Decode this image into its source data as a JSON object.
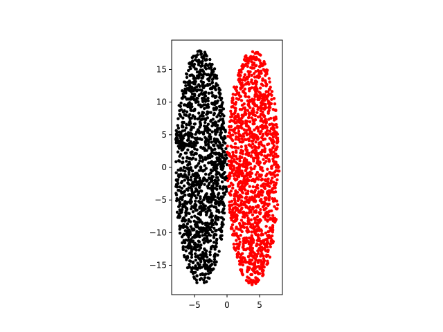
{
  "chart_data": {
    "type": "scatter",
    "title": "",
    "xlabel": "",
    "ylabel": "",
    "xlim": [
      -8.5,
      8.5
    ],
    "ylim": [
      -19.5,
      19.5
    ],
    "xticks": [
      -5,
      0,
      5
    ],
    "xtick_labels": [
      "−5",
      "0",
      "5"
    ],
    "yticks": [
      -15,
      -10,
      -5,
      0,
      5,
      10,
      15
    ],
    "ytick_labels": [
      "−15",
      "−10",
      "−5",
      "0",
      "5",
      "10",
      "15"
    ],
    "grid": false,
    "legend": "none",
    "equal_aspect": true,
    "series": [
      {
        "color": "#000000",
        "marker_size": 3,
        "point_count": 1500,
        "distribution": "uniform inside ellipse",
        "center": [
          -4.0,
          0.0
        ],
        "semi_axes": [
          4.0,
          18.0
        ]
      },
      {
        "color": "#ff0000",
        "marker_size": 3,
        "point_count": 1500,
        "distribution": "uniform inside ellipse",
        "center": [
          4.0,
          0.0
        ],
        "semi_axes": [
          4.0,
          18.0
        ]
      }
    ]
  }
}
